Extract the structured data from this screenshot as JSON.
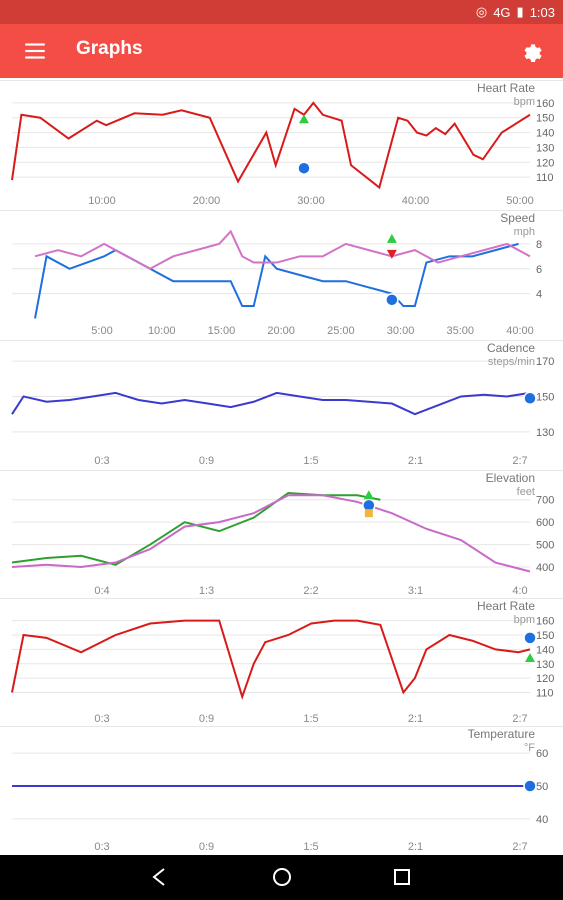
{
  "status_bar": {
    "time": "1:03",
    "network": "4G"
  },
  "app_bar": {
    "title": "Graphs"
  },
  "chart_data": [
    {
      "type": "line",
      "title": "Heart Rate",
      "units": "bpm",
      "x_ticks": [
        "10:00",
        "20:00",
        "30:00",
        "40:00",
        "50:00"
      ],
      "y_ticks": [
        110,
        120,
        130,
        140,
        150,
        160
      ],
      "ylim": [
        104,
        166
      ],
      "series": [
        {
          "color": "#d91a1a",
          "x": [
            0,
            1,
            3,
            6,
            9,
            10,
            13,
            16,
            18,
            21,
            24,
            27,
            28,
            30,
            31,
            32,
            33,
            35,
            36,
            38,
            39,
            41,
            42,
            43,
            44,
            45,
            46,
            47,
            49,
            50,
            52,
            54,
            55
          ],
          "values": [
            108,
            152,
            150,
            136,
            148,
            145,
            153,
            152,
            155,
            150,
            107,
            140,
            118,
            156,
            152,
            160,
            152,
            148,
            118,
            108,
            103,
            150,
            148,
            140,
            138,
            143,
            139,
            146,
            125,
            122,
            140,
            148,
            152
          ]
        }
      ],
      "markers": [
        {
          "kind": "dot",
          "x": 31,
          "y": 116,
          "color": "#1f6fe0"
        },
        {
          "kind": "triangle-up",
          "x": 31,
          "y": 149,
          "color": "#2ecc40"
        }
      ]
    },
    {
      "type": "line",
      "title": "Speed",
      "units": "mph",
      "x_ticks": [
        "5:00",
        "10:00",
        "15:00",
        "20:00",
        "25:00",
        "30:00",
        "35:00",
        "40:00"
      ],
      "y_ticks": [
        4,
        6,
        8
      ],
      "ylim": [
        2.2,
        9.6
      ],
      "series": [
        {
          "color": "#1f6fe0",
          "x": [
            2,
            3,
            5,
            8,
            9,
            12,
            14,
            16,
            19,
            20,
            21,
            22,
            23,
            25,
            27,
            29,
            31,
            33,
            34,
            35,
            36,
            38,
            40,
            42,
            44
          ],
          "values": [
            2,
            7,
            6,
            7,
            7.5,
            6,
            5,
            5,
            5,
            3,
            3,
            7,
            6,
            5.5,
            5,
            5,
            4.5,
            4,
            3,
            3,
            6.5,
            7,
            7,
            7.5,
            8
          ]
        },
        {
          "color": "#d272c8",
          "x": [
            2,
            4,
            6,
            8,
            10,
            12,
            14,
            16,
            18,
            19,
            20,
            21,
            23,
            25,
            27,
            29,
            31,
            33,
            35,
            37,
            39,
            41,
            43,
            45
          ],
          "values": [
            7,
            7.5,
            7,
            8,
            7,
            6,
            7,
            7.5,
            8,
            9,
            7,
            6.5,
            6.5,
            7,
            7,
            8,
            7.5,
            7,
            7.5,
            6.5,
            7,
            7.5,
            8,
            7
          ]
        }
      ],
      "markers": [
        {
          "kind": "dot",
          "x": 33,
          "y": 3.5,
          "color": "#1f6fe0"
        },
        {
          "kind": "triangle-up",
          "x": 33,
          "y": 8.4,
          "color": "#2ecc40"
        },
        {
          "kind": "triangle-down",
          "x": 33,
          "y": 7.2,
          "color": "#e02020"
        }
      ]
    },
    {
      "type": "line",
      "title": "Cadence",
      "units": "steps/min",
      "x_ticks": [
        "0:3",
        "0:9",
        "1:5",
        "2:1",
        "2:7"
      ],
      "y_ticks": [
        130,
        150,
        170
      ],
      "ylim": [
        122,
        174
      ],
      "series": [
        {
          "color": "#3a3ad0",
          "x": [
            0,
            1,
            3,
            5,
            7,
            9,
            11,
            13,
            15,
            17,
            19,
            21,
            23,
            25,
            27,
            29,
            31,
            33,
            35,
            37,
            39,
            41,
            43,
            45
          ],
          "values": [
            140,
            150,
            147,
            148,
            150,
            152,
            148,
            146,
            148,
            146,
            144,
            147,
            152,
            150,
            148,
            148,
            147,
            146,
            140,
            145,
            150,
            151,
            150,
            152
          ]
        }
      ],
      "markers": [
        {
          "kind": "dot",
          "x": 45,
          "y": 149,
          "color": "#1f6fe0"
        }
      ]
    },
    {
      "type": "line",
      "title": "Elevation",
      "units": "feet",
      "x_ticks": [
        "0:4",
        "1:3",
        "2:2",
        "3:1",
        "4:0"
      ],
      "y_ticks": [
        400,
        500,
        600,
        700
      ],
      "ylim": [
        360,
        770
      ],
      "series": [
        {
          "color": "#2fa02f",
          "x": [
            0,
            3,
            6,
            9,
            12,
            15,
            18,
            21,
            24,
            27,
            30,
            32
          ],
          "values": [
            420,
            440,
            450,
            410,
            500,
            600,
            560,
            620,
            730,
            720,
            720,
            700
          ]
        },
        {
          "color": "#c86ac8",
          "x": [
            0,
            3,
            6,
            9,
            12,
            15,
            18,
            21,
            24,
            27,
            30,
            33,
            36,
            39,
            42,
            45
          ],
          "values": [
            400,
            410,
            400,
            420,
            480,
            580,
            600,
            640,
            720,
            720,
            690,
            640,
            570,
            520,
            420,
            380
          ]
        }
      ],
      "markers": [
        {
          "kind": "dot",
          "x": 31,
          "y": 675,
          "color": "#1f6fe0"
        },
        {
          "kind": "triangle-up",
          "x": 31,
          "y": 720,
          "color": "#2ecc40"
        },
        {
          "kind": "square",
          "x": 31,
          "y": 640,
          "color": "#f2b63c"
        }
      ]
    },
    {
      "type": "line",
      "title": "Heart Rate",
      "units": "bpm",
      "x_ticks": [
        "0:3",
        "0:9",
        "1:5",
        "2:1",
        "2:7"
      ],
      "y_ticks": [
        110,
        120,
        130,
        140,
        150,
        160
      ],
      "ylim": [
        102,
        166
      ],
      "series": [
        {
          "color": "#d91a1a",
          "x": [
            0,
            1,
            3,
            6,
            9,
            12,
            15,
            18,
            20,
            21,
            22,
            24,
            26,
            28,
            30,
            32,
            34,
            35,
            36,
            38,
            40,
            42,
            44,
            45
          ],
          "values": [
            110,
            150,
            148,
            138,
            150,
            158,
            160,
            160,
            107,
            130,
            145,
            150,
            158,
            160,
            160,
            157,
            110,
            120,
            140,
            150,
            146,
            140,
            138,
            140
          ]
        }
      ],
      "markers": [
        {
          "kind": "dot",
          "x": 45,
          "y": 148,
          "color": "#1f6fe0"
        },
        {
          "kind": "triangle-up",
          "x": 45,
          "y": 134,
          "color": "#2ecc40"
        }
      ]
    },
    {
      "type": "line",
      "title": "Temperature",
      "units": "°F",
      "x_ticks": [
        "0:3",
        "0:9",
        "1:5",
        "2:1",
        "2:7"
      ],
      "y_ticks": [
        40,
        50,
        60
      ],
      "ylim": [
        36,
        64
      ],
      "series": [
        {
          "color": "#3a3ad0",
          "x": [
            0,
            45
          ],
          "values": [
            50,
            50
          ]
        }
      ],
      "markers": [
        {
          "kind": "dot",
          "x": 45,
          "y": 50,
          "color": "#1f6fe0"
        }
      ]
    }
  ],
  "nav_bar": {}
}
